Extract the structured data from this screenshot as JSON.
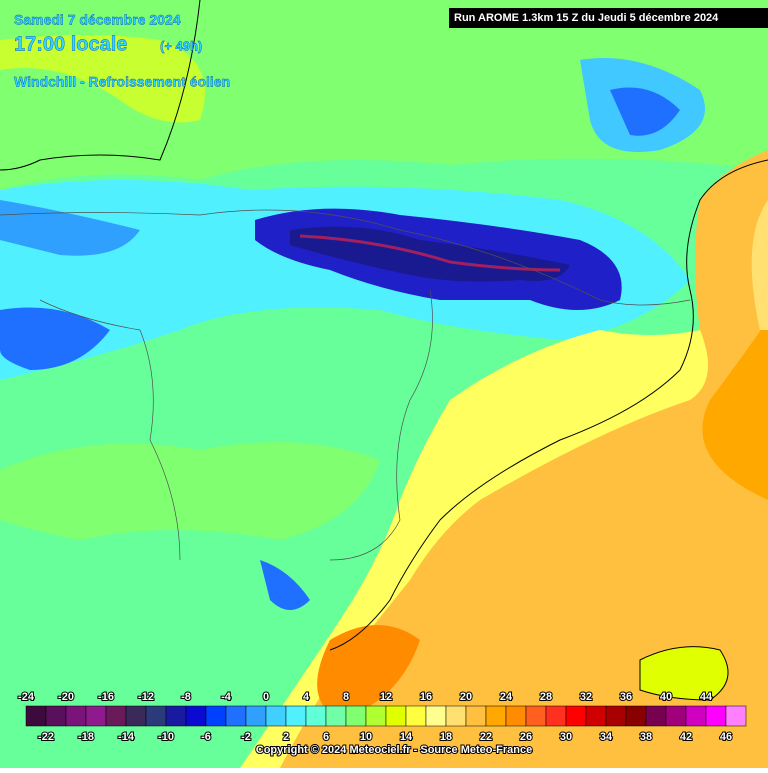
{
  "header": {
    "date": "Samedi 7 décembre 2024",
    "time": "17:00 locale",
    "lead": "(+ 49h)",
    "variable": "Windchill - Refroissement éolien"
  },
  "run": "Run AROME 1.3km 15 Z du Jeudi 5 décembre 2024",
  "legend": {
    "values": [
      -24,
      -22,
      -20,
      -18,
      -16,
      -14,
      -12,
      -10,
      -8,
      -6,
      -4,
      -2,
      0,
      2,
      4,
      6,
      8,
      10,
      12,
      14,
      16,
      18,
      20,
      22,
      24,
      26,
      28,
      30,
      32,
      34,
      36,
      38,
      40,
      42,
      44,
      46
    ],
    "colors": [
      "#3c0a3c",
      "#5a0f5a",
      "#7a137a",
      "#8e1a8e",
      "#6a1a5a",
      "#3a2a5a",
      "#2a3a7a",
      "#1a1aa0",
      "#0a0ad0",
      "#0040ff",
      "#2070ff",
      "#30a0ff",
      "#40d0ff",
      "#50f0ff",
      "#60ffd8",
      "#70ffa8",
      "#80ff70",
      "#b0ff30",
      "#e0ff00",
      "#ffff40",
      "#ffff90",
      "#ffe070",
      "#ffc040",
      "#ffa800",
      "#ff8c00",
      "#ff6020",
      "#ff3020",
      "#ff0000",
      "#d00000",
      "#a80000",
      "#880000",
      "#780050",
      "#a0007a",
      "#d000c0",
      "#ff00ff",
      "#ff80ff"
    ]
  },
  "copyright": "Copyright © 2024 Meteociel.fr - Source Meteo-France"
}
